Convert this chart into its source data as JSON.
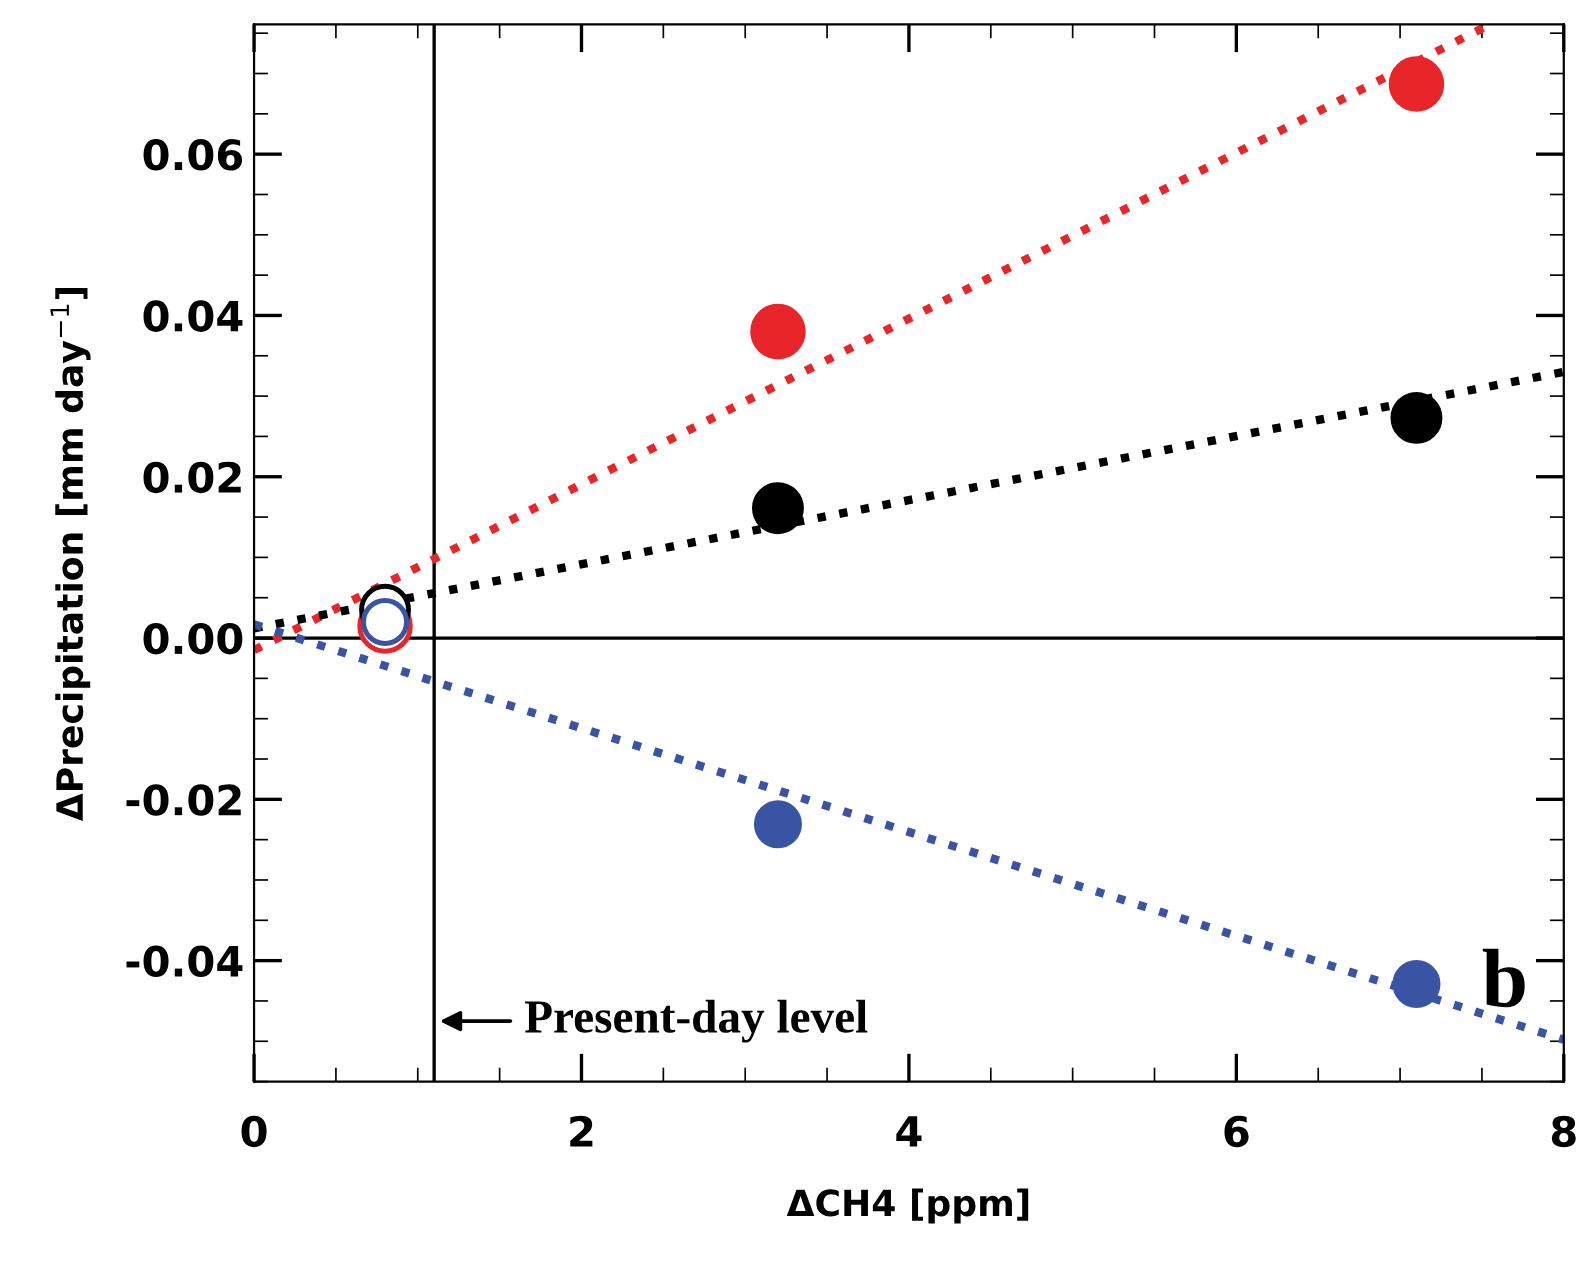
{
  "chart_data": {
    "type": "scatter",
    "xlabel": "ΔCH4 [ppm]",
    "ylabel": "ΔPrecipitation [mm day$^{−1}$]",
    "xlim": [
      0,
      8
    ],
    "ylim": [
      -0.055,
      0.0761
    ],
    "xticks": [
      0,
      2,
      4,
      6,
      8
    ],
    "yticks": [
      {
        "value": -0.04,
        "label": "-0.04"
      },
      {
        "value": -0.02,
        "label": "-0.02"
      },
      {
        "value": 0,
        "label": "0.00"
      },
      {
        "value": 0.02,
        "label": "0.02"
      },
      {
        "value": 0.04,
        "label": "0.04"
      },
      {
        "value": 0.06,
        "label": "0.06"
      }
    ],
    "grid": false,
    "legend": false,
    "marker": "circle",
    "series": [
      {
        "color": "#e8262a",
        "colors": [
          "#ffffff",
          "#e8262a",
          "#e8262a"
        ],
        "x": [
          0.8,
          3.2,
          7.1
        ],
        "values": [
          0.0015,
          0.038,
          0.0687
        ]
      },
      {
        "color": "#000000",
        "colors": [
          "#ffffff",
          "#000000",
          "#000000"
        ],
        "x": [
          0.8,
          3.2,
          7.1
        ],
        "values": [
          0.0035,
          0.0161,
          0.0273
        ]
      },
      {
        "color": "#3a54a4",
        "colors": [
          "#ffffff",
          "#3a54a4",
          "#3a54a4"
        ],
        "x": [
          0.8,
          3.2,
          7.1
        ],
        "values": [
          0.002,
          -0.0231,
          -0.0429
        ]
      },
      {
        "type": "line",
        "marker": "none",
        "line_style": "dotted",
        "color": "#e8262a",
        "x": [
          0,
          7.55
        ],
        "values": [
          -0.0015,
          0.0761
        ]
      },
      {
        "type": "line",
        "marker": "none",
        "line_style": "dotted",
        "color": "#000000",
        "x": [
          0,
          8
        ],
        "values": [
          0.0012,
          0.033
        ]
      },
      {
        "type": "line",
        "marker": "none",
        "line_style": "dotted",
        "color": "#3a54a4",
        "x": [
          0,
          8
        ],
        "values": [
          0.0017,
          -0.0498
        ]
      }
    ],
    "ref_lines": [
      {
        "axis": "x",
        "value": 1.1,
        "color": "#000000"
      },
      {
        "axis": "y",
        "value": 0,
        "color": "#000000"
      }
    ],
    "annotations": [
      {
        "text": "Present-day level",
        "x": 1.1,
        "y": -0.0475
      },
      "b"
    ]
  }
}
